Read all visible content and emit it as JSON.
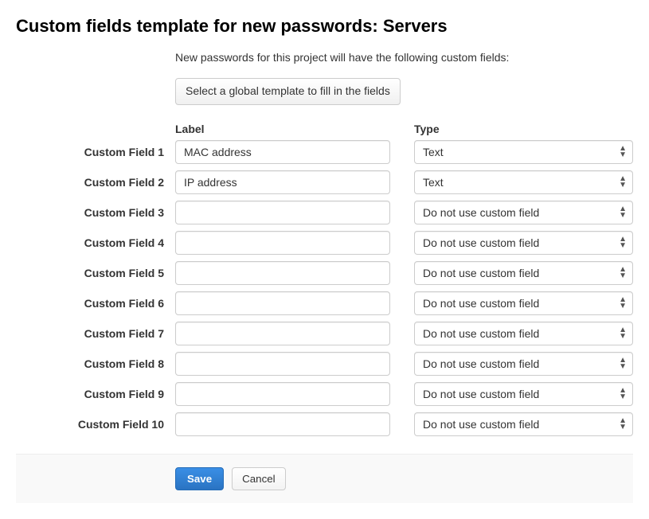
{
  "page": {
    "title": "Custom fields template for new passwords: Servers",
    "subtitle": "New passwords for this project will have the following custom fields:",
    "select_template_button": "Select a global template to fill in the fields"
  },
  "columns": {
    "label": "Label",
    "type": "Type"
  },
  "fields": [
    {
      "name": "Custom Field 1",
      "label_value": "MAC address",
      "type_value": "Text"
    },
    {
      "name": "Custom Field 2",
      "label_value": "IP address",
      "type_value": "Text"
    },
    {
      "name": "Custom Field 3",
      "label_value": "",
      "type_value": "Do not use custom field"
    },
    {
      "name": "Custom Field 4",
      "label_value": "",
      "type_value": "Do not use custom field"
    },
    {
      "name": "Custom Field 5",
      "label_value": "",
      "type_value": "Do not use custom field"
    },
    {
      "name": "Custom Field 6",
      "label_value": "",
      "type_value": "Do not use custom field"
    },
    {
      "name": "Custom Field 7",
      "label_value": "",
      "type_value": "Do not use custom field"
    },
    {
      "name": "Custom Field 8",
      "label_value": "",
      "type_value": "Do not use custom field"
    },
    {
      "name": "Custom Field 9",
      "label_value": "",
      "type_value": "Do not use custom field"
    },
    {
      "name": "Custom Field 10",
      "label_value": "",
      "type_value": "Do not use custom field"
    }
  ],
  "type_options": [
    "Text",
    "Do not use custom field"
  ],
  "actions": {
    "save": "Save",
    "cancel": "Cancel"
  },
  "colors": {
    "primary": "#2e7cd1",
    "border": "#cccccc",
    "footer_bg": "#f9f9f9"
  }
}
